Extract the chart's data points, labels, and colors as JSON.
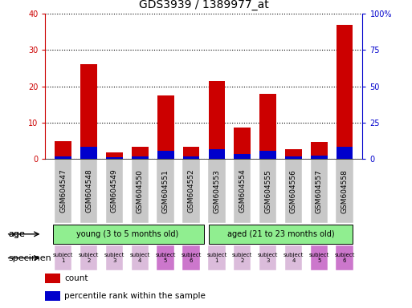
{
  "title": "GDS3939 / 1389977_at",
  "samples": [
    "GSM604547",
    "GSM604548",
    "GSM604549",
    "GSM604550",
    "GSM604551",
    "GSM604552",
    "GSM604553",
    "GSM604554",
    "GSM604555",
    "GSM604556",
    "GSM604557",
    "GSM604558"
  ],
  "count_values": [
    4.8,
    26.0,
    1.7,
    3.2,
    17.5,
    3.2,
    21.5,
    8.5,
    17.8,
    2.5,
    4.7,
    37.0
  ],
  "percentile_values": [
    1.5,
    8.0,
    1.2,
    1.8,
    5.5,
    1.5,
    6.5,
    3.0,
    5.2,
    1.8,
    2.0,
    8.0
  ],
  "ylim_left": [
    0,
    40
  ],
  "ylim_right": [
    0,
    100
  ],
  "yticks_left": [
    0,
    10,
    20,
    30,
    40
  ],
  "yticks_right": [
    0,
    25,
    50,
    75,
    100
  ],
  "ytick_labels_right": [
    "0",
    "25",
    "50",
    "75",
    "100%"
  ],
  "count_color": "#cc0000",
  "percentile_color": "#0000cc",
  "age_groups": [
    {
      "label": "young (3 to 5 months old)",
      "start": 0,
      "end": 6,
      "color": "#90ee90"
    },
    {
      "label": "aged (21 to 23 months old)",
      "start": 6,
      "end": 12,
      "color": "#90ee90"
    }
  ],
  "spec_colors_light": "#dbbcdb",
  "spec_colors_dark": "#cc77cc",
  "specimen_labels": [
    "subject\n1",
    "subject\n2",
    "subject\n3",
    "subject\n4",
    "subject\n5",
    "subject\n6",
    "subject\n1",
    "subject\n2",
    "subject\n3",
    "subject\n4",
    "subject\n5",
    "subject\n6"
  ],
  "spec_dark_indices": [
    4,
    5,
    10,
    11
  ],
  "age_label": "age",
  "specimen_label": "specimen",
  "legend_count": "count",
  "legend_percentile": "percentile rank within the sample",
  "bar_width": 0.65,
  "axis_left_color": "#cc0000",
  "axis_right_color": "#0000cc",
  "bar_bg_color": "#c8c8c8",
  "n_samples": 12
}
